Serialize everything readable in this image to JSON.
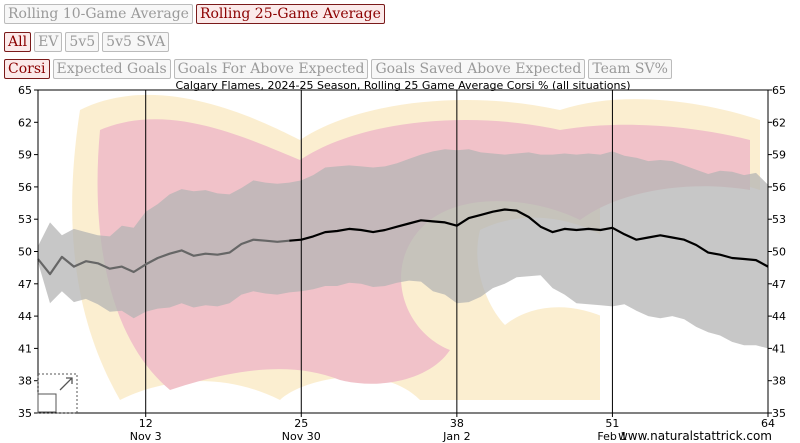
{
  "controls": {
    "period_buttons": [
      {
        "label": "Rolling 10-Game Average",
        "active": false
      },
      {
        "label": "Rolling 25-Game Average",
        "active": true
      }
    ],
    "situation_buttons": [
      {
        "label": "All",
        "active": true
      },
      {
        "label": "EV",
        "active": false
      },
      {
        "label": "5v5",
        "active": false
      },
      {
        "label": "5v5 SVA",
        "active": false
      }
    ],
    "metric_buttons": [
      {
        "label": "Corsi",
        "active": true
      },
      {
        "label": "Expected Goals",
        "active": false
      },
      {
        "label": "Goals For Above Expected",
        "active": false
      },
      {
        "label": "Goals Saved Above Expected",
        "active": false
      },
      {
        "label": "Team SV%",
        "active": false
      }
    ]
  },
  "colors": {
    "line": "#000000",
    "line_early": "#666666",
    "band": "#b4b4b4",
    "logo_red": "#c8102e",
    "logo_gold": "#f1be48"
  },
  "chart_data": {
    "type": "line",
    "title": "Calgary Flames, 2024-25 Season, Rolling 25 Game Average Corsi % (all situations)",
    "y_ticks": [
      35,
      38,
      41,
      44,
      47,
      50,
      53,
      56,
      59,
      62,
      65
    ],
    "ylim": [
      35,
      65
    ],
    "xlim": [
      3,
      64
    ],
    "x_ticks": [
      {
        "value": 12,
        "num": "12",
        "date": "Nov 3"
      },
      {
        "value": 25,
        "num": "25",
        "date": "Nov 30"
      },
      {
        "value": 38,
        "num": "38",
        "date": "Jan 2"
      },
      {
        "value": 51,
        "num": "51",
        "date": "Feb 1"
      },
      {
        "value": 64,
        "num": "64",
        "date": ""
      }
    ],
    "grid": "vertical lines at x ticks",
    "series": [
      {
        "x": [
          3,
          4,
          5,
          6,
          7,
          8,
          9,
          10,
          11,
          12,
          13,
          14,
          15,
          16,
          17,
          18,
          19,
          20,
          21,
          22,
          23,
          24,
          25,
          26,
          27,
          28,
          29,
          30,
          31,
          32,
          33,
          34,
          35,
          36,
          37,
          38,
          39,
          40,
          41,
          42,
          43,
          44,
          45,
          46,
          47,
          48,
          49,
          50,
          51,
          52,
          53,
          54,
          55,
          56,
          57,
          58,
          59,
          60,
          61,
          62,
          63,
          64
        ],
        "values": [
          49.3,
          47.9,
          49.5,
          48.6,
          49.1,
          48.9,
          48.4,
          48.6,
          48.1,
          48.8,
          49.4,
          49.8,
          50.1,
          49.6,
          49.8,
          49.7,
          49.9,
          50.7,
          51.1,
          51.0,
          50.9,
          51.0,
          51.1,
          51.4,
          51.8,
          51.9,
          52.1,
          52.0,
          51.8,
          52.0,
          52.3,
          52.6,
          52.9,
          52.8,
          52.7,
          52.4,
          53.1,
          53.4,
          53.7,
          53.9,
          53.8,
          53.2,
          52.3,
          51.8,
          52.1,
          52.0,
          52.1,
          52.0,
          52.2,
          51.6,
          51.1,
          51.3,
          51.5,
          51.3,
          51.1,
          50.6,
          49.9,
          49.7,
          49.4,
          49.3,
          49.2,
          48.6
        ]
      }
    ],
    "band_upper": [
      50.5,
      52.7,
      51.5,
      52.1,
      51.8,
      51.5,
      51.4,
      52.4,
      52.2,
      53.7,
      54.4,
      55.3,
      55.8,
      55.6,
      55.7,
      55.4,
      55.3,
      55.9,
      56.6,
      56.4,
      56.3,
      56.4,
      56.6,
      57.1,
      57.8,
      57.9,
      58.0,
      57.9,
      57.8,
      57.9,
      58.2,
      58.6,
      59.0,
      59.3,
      59.5,
      59.4,
      59.5,
      59.2,
      59.1,
      59.0,
      59.1,
      59.2,
      59.0,
      59.0,
      59.1,
      59.0,
      59.1,
      59.0,
      59.3,
      58.9,
      58.7,
      58.4,
      58.5,
      58.4,
      58.0,
      57.6,
      57.2,
      57.5,
      57.4,
      57.1,
      57.3,
      56.2
    ],
    "band_lower": [
      49.0,
      45.2,
      46.3,
      45.3,
      45.6,
      45.1,
      44.4,
      44.5,
      43.8,
      44.4,
      44.7,
      44.8,
      45.2,
      44.8,
      45.0,
      44.9,
      45.2,
      46.0,
      46.3,
      46.1,
      46.0,
      46.2,
      46.3,
      46.5,
      46.8,
      46.8,
      47.1,
      47.0,
      46.7,
      46.8,
      47.1,
      47.3,
      47.2,
      46.3,
      46.0,
      45.2,
      45.3,
      45.8,
      46.6,
      47.0,
      47.6,
      47.7,
      47.8,
      46.6,
      46.0,
      45.2,
      45.1,
      45.0,
      44.9,
      45.1,
      44.5,
      44.0,
      43.8,
      44.0,
      43.7,
      43.0,
      42.5,
      42.2,
      41.6,
      41.3,
      41.3,
      41.0
    ]
  },
  "footer": {
    "credit": "www.naturalstattrick.com"
  }
}
